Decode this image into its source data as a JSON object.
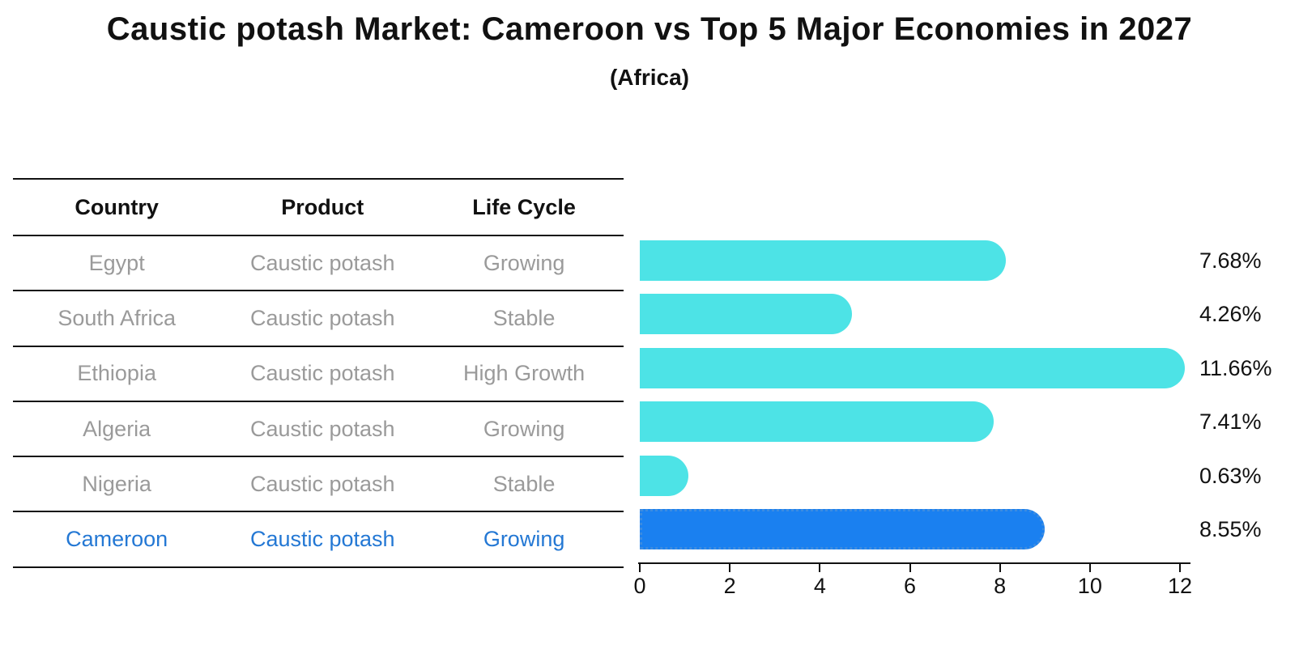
{
  "title": "Caustic potash Market: Cameroon vs Top 5 Major Economies in 2027",
  "subtitle": "(Africa)",
  "colors": {
    "ink": "#111111",
    "cell_text": "#9a9a9a",
    "highlight_text": "#2478d4",
    "bar_default": "#4de3e6",
    "bar_highlight": "#1a80f0",
    "bar_highlight_border": "#3d8ce0"
  },
  "table": {
    "headers": [
      "Country",
      "Product",
      "Life Cycle"
    ],
    "rows": [
      {
        "country": "Egypt",
        "product": "Caustic potash",
        "life_cycle": "Growing",
        "highlight": false
      },
      {
        "country": "South Africa",
        "product": "Caustic potash",
        "life_cycle": "Stable",
        "highlight": false
      },
      {
        "country": "Ethiopia",
        "product": "Caustic potash",
        "life_cycle": "High Growth",
        "highlight": false
      },
      {
        "country": "Algeria",
        "product": "Caustic potash",
        "life_cycle": "Growing",
        "highlight": false
      },
      {
        "country": "Nigeria",
        "product": "Caustic potash",
        "life_cycle": "Stable",
        "highlight": false
      },
      {
        "country": "Cameroon",
        "product": "Caustic potash",
        "life_cycle": "Growing",
        "highlight": true
      }
    ]
  },
  "chart_data": {
    "type": "bar",
    "orientation": "horizontal",
    "title": "Caustic potash Market: Cameroon vs Top 5 Major Economies in 2027 (Africa)",
    "categories": [
      "Egypt",
      "South Africa",
      "Ethiopia",
      "Algeria",
      "Nigeria",
      "Cameroon"
    ],
    "values": [
      7.68,
      4.26,
      11.66,
      7.41,
      0.63,
      8.55
    ],
    "labels": [
      "7.68%",
      "4.26%",
      "11.66%",
      "7.41%",
      "0.63%",
      "8.55%"
    ],
    "unit": "%",
    "xlim": [
      0,
      12
    ],
    "x_ticks": [
      0,
      2,
      4,
      6,
      8,
      10,
      12
    ],
    "highlight_index": 5,
    "grid": false,
    "legend": false
  }
}
